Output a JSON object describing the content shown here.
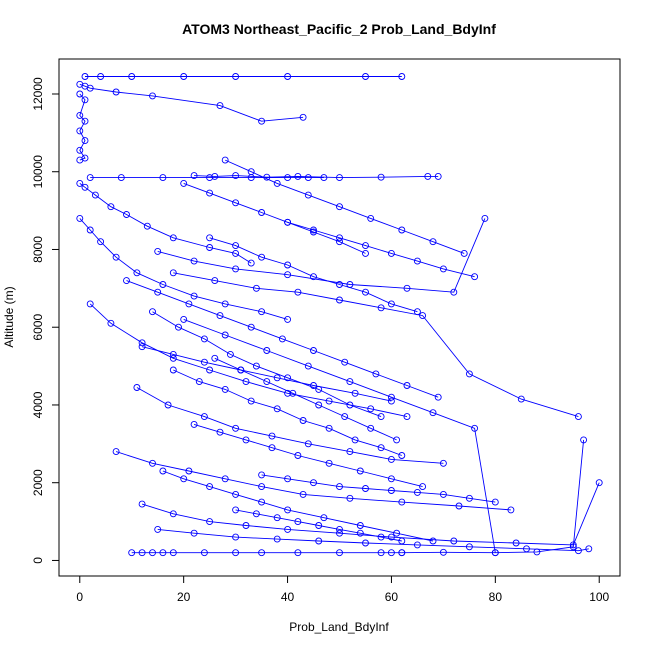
{
  "chart_data": {
    "type": "line",
    "title": "ATOM3 Northeast_Pacific_2 Prob_Land_BdyInf",
    "xlabel": "Prob_Land_BdyInf",
    "ylabel": "Altitude (m)",
    "xlim": [
      -4,
      104
    ],
    "ylim": [
      -400,
      12900
    ],
    "x_ticks": [
      0,
      20,
      40,
      60,
      80,
      100
    ],
    "y_ticks": [
      0,
      2000,
      4000,
      6000,
      8000,
      10000,
      12000
    ],
    "x_tick_labels": [
      "0",
      "20",
      "40",
      "60",
      "80",
      "100"
    ],
    "y_tick_labels": [
      "0",
      "2000",
      "4000",
      "6000",
      "8000",
      "10000",
      "12000"
    ],
    "grid": false,
    "marker": "open-circle",
    "series_color": "#0000ff",
    "series": [
      {
        "x": [
          1,
          4,
          10,
          20,
          30,
          40,
          55,
          62
        ],
        "y": [
          12450,
          12450,
          12450,
          12450,
          12450,
          12450,
          12450,
          12450
        ]
      },
      {
        "x": [
          0,
          1,
          2,
          7,
          14,
          27,
          35,
          43
        ],
        "y": [
          12250,
          12200,
          12150,
          12050,
          11950,
          11700,
          11300,
          11400
        ]
      },
      {
        "x": [
          0,
          1,
          0,
          1,
          0,
          1,
          0,
          1,
          0
        ],
        "y": [
          12000,
          11850,
          11450,
          11300,
          11050,
          10800,
          10550,
          10350,
          10300
        ]
      },
      {
        "x": [
          2,
          8,
          16,
          25,
          33,
          40,
          44,
          47
        ],
        "y": [
          9850,
          9850,
          9850,
          9850,
          9850,
          9850,
          9850,
          9850
        ]
      },
      {
        "x": [
          22,
          26,
          30,
          36,
          42,
          50,
          58,
          67,
          69
        ],
        "y": [
          9900,
          9880,
          9900,
          9860,
          9880,
          9850,
          9860,
          9880,
          9880
        ]
      },
      {
        "x": [
          0,
          1,
          3,
          6,
          9,
          13,
          18,
          25,
          30,
          33
        ],
        "y": [
          9700,
          9600,
          9400,
          9100,
          8900,
          8600,
          8300,
          8050,
          7900,
          7650
        ]
      },
      {
        "x": [
          0,
          2,
          4,
          7,
          11,
          16,
          22,
          28,
          35,
          40
        ],
        "y": [
          8800,
          8500,
          8200,
          7800,
          7400,
          7100,
          6800,
          6600,
          6400,
          6200
        ]
      },
      {
        "x": [
          2,
          6,
          12,
          18,
          25,
          32,
          40,
          48,
          56,
          63
        ],
        "y": [
          6600,
          6100,
          5600,
          5200,
          4900,
          4600,
          4300,
          4100,
          3900,
          3700
        ]
      },
      {
        "x": [
          15,
          22,
          30,
          40,
          52,
          63,
          72,
          78
        ],
        "y": [
          7950,
          7700,
          7500,
          7350,
          7100,
          7000,
          6900,
          8800
        ]
      },
      {
        "x": [
          18,
          26,
          34,
          42,
          50,
          58,
          66,
          75,
          85,
          96
        ],
        "y": [
          7400,
          7200,
          7000,
          6900,
          6700,
          6500,
          6300,
          4800,
          4150,
          3700
        ]
      },
      {
        "x": [
          12,
          18,
          24,
          31,
          38,
          45,
          53,
          60
        ],
        "y": [
          5500,
          5300,
          5100,
          4900,
          4700,
          4500,
          4300,
          4100
        ]
      },
      {
        "x": [
          11,
          17,
          24,
          30,
          37,
          44,
          52,
          60,
          70
        ],
        "y": [
          4450,
          4000,
          3700,
          3400,
          3200,
          3000,
          2800,
          2600,
          2500
        ]
      },
      {
        "x": [
          7,
          14,
          21,
          28,
          35,
          43,
          52,
          62,
          73,
          83
        ],
        "y": [
          2800,
          2500,
          2300,
          2100,
          1900,
          1700,
          1600,
          1500,
          1400,
          1300
        ]
      },
      {
        "x": [
          12,
          18,
          25,
          32,
          40,
          50,
          60,
          72,
          84,
          95,
          100
        ],
        "y": [
          1450,
          1200,
          1000,
          900,
          800,
          700,
          600,
          500,
          450,
          400,
          2000
        ]
      },
      {
        "x": [
          15,
          22,
          30,
          38,
          46,
          55,
          65,
          75,
          86,
          96,
          98
        ],
        "y": [
          800,
          700,
          600,
          550,
          500,
          450,
          400,
          350,
          300,
          250,
          300
        ]
      },
      {
        "x": [
          10,
          12,
          14,
          16,
          18,
          24,
          30,
          35,
          42,
          50,
          58,
          60,
          62
        ],
        "y": [
          200,
          200,
          200,
          200,
          200,
          200,
          200,
          200,
          200,
          200,
          200,
          200,
          200
        ]
      },
      {
        "x": [
          62,
          70,
          80,
          88,
          95,
          97
        ],
        "y": [
          200,
          210,
          200,
          220,
          350,
          3100
        ]
      },
      {
        "x": [
          20,
          28,
          36,
          44,
          52,
          60,
          68,
          76,
          80
        ],
        "y": [
          6200,
          5800,
          5400,
          5000,
          4600,
          4200,
          3800,
          3400,
          200
        ]
      },
      {
        "x": [
          25,
          30,
          35,
          40,
          45,
          50,
          55,
          60,
          65
        ],
        "y": [
          8300,
          8100,
          7800,
          7600,
          7300,
          7100,
          6900,
          6600,
          6400
        ]
      },
      {
        "x": [
          20,
          25,
          30,
          35,
          40,
          45,
          50,
          55
        ],
        "y": [
          9700,
          9450,
          9200,
          8950,
          8700,
          8450,
          8200,
          7900
        ]
      },
      {
        "x": [
          22,
          27,
          32,
          37,
          42,
          48,
          54,
          60,
          66
        ],
        "y": [
          3500,
          3300,
          3100,
          2900,
          2700,
          2500,
          2300,
          2100,
          1900
        ]
      },
      {
        "x": [
          16,
          20,
          25,
          30,
          35,
          40,
          47,
          54,
          61,
          68
        ],
        "y": [
          2300,
          2100,
          1900,
          1700,
          1500,
          1300,
          1100,
          900,
          700,
          500
        ]
      },
      {
        "x": [
          14,
          19,
          24,
          29,
          34,
          40,
          46,
          52,
          58
        ],
        "y": [
          6400,
          6000,
          5700,
          5300,
          5000,
          4700,
          4400,
          4000,
          3700
        ]
      },
      {
        "x": [
          18,
          23,
          28,
          33,
          38,
          43,
          48,
          53,
          58,
          62
        ],
        "y": [
          4900,
          4600,
          4400,
          4100,
          3900,
          3600,
          3400,
          3100,
          2900,
          2700
        ]
      },
      {
        "x": [
          28,
          33,
          38,
          44,
          50,
          56,
          62,
          68,
          74
        ],
        "y": [
          10300,
          10000,
          9700,
          9400,
          9100,
          8800,
          8500,
          8200,
          7900
        ]
      },
      {
        "x": [
          26,
          31,
          36,
          41,
          46,
          51,
          56,
          61
        ],
        "y": [
          5200,
          4900,
          4600,
          4300,
          4000,
          3700,
          3400,
          3100
        ]
      },
      {
        "x": [
          9,
          15,
          21,
          27,
          33,
          39,
          45,
          51,
          57,
          63,
          69
        ],
        "y": [
          7200,
          6900,
          6600,
          6300,
          6000,
          5700,
          5400,
          5100,
          4800,
          4500,
          4200
        ]
      },
      {
        "x": [
          30,
          34,
          38,
          42,
          46,
          50,
          54,
          58,
          62
        ],
        "y": [
          1300,
          1200,
          1100,
          1000,
          900,
          800,
          700,
          600,
          500
        ]
      },
      {
        "x": [
          35,
          40,
          45,
          50,
          55,
          60,
          65,
          70,
          75,
          80
        ],
        "y": [
          2200,
          2100,
          2000,
          1900,
          1850,
          1800,
          1750,
          1700,
          1600,
          1500
        ]
      },
      {
        "x": [
          40,
          45,
          50,
          55,
          60,
          65,
          70,
          76
        ],
        "y": [
          8700,
          8500,
          8300,
          8100,
          7900,
          7700,
          7500,
          7300
        ]
      }
    ]
  }
}
